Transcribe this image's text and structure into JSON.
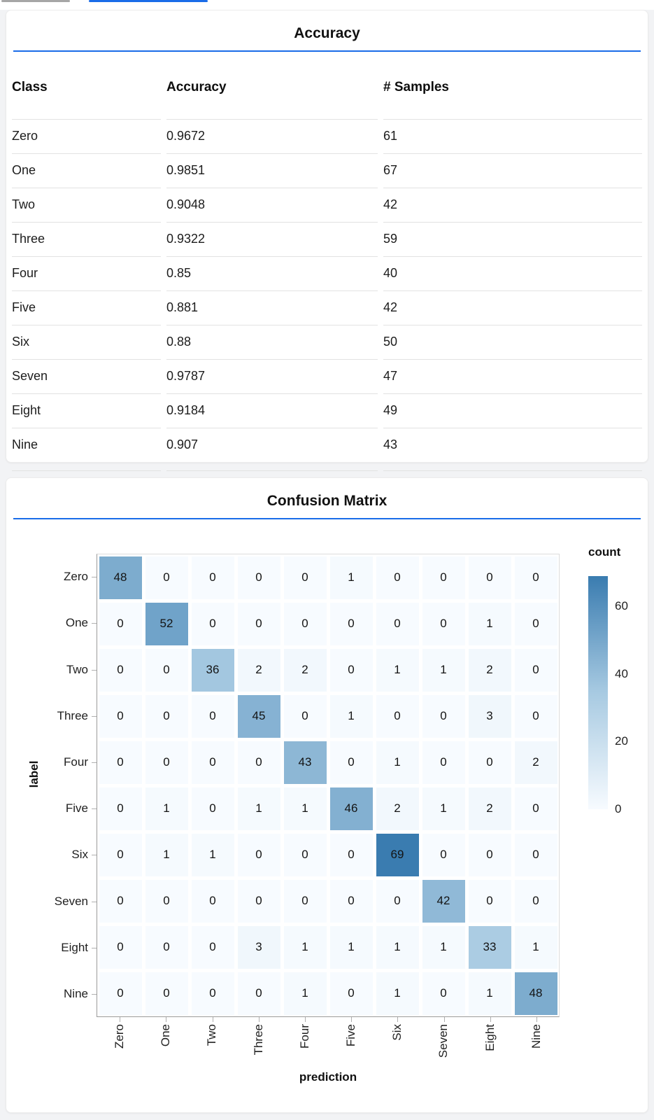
{
  "page": {
    "background": "#f2f3f5",
    "accent_blue": "#1a6ce8"
  },
  "top_tabs": {
    "gray_indicator_color": "#a6a6a6",
    "blue_indicator_color": "#1a6ce8"
  },
  "accuracy_card": {
    "title": "Accuracy",
    "table": {
      "columns": [
        "Class",
        "Accuracy",
        "# Samples"
      ],
      "rows": [
        [
          "Zero",
          "0.9672",
          "61"
        ],
        [
          "One",
          "0.9851",
          "67"
        ],
        [
          "Two",
          "0.9048",
          "42"
        ],
        [
          "Three",
          "0.9322",
          "59"
        ],
        [
          "Four",
          "0.85",
          "40"
        ],
        [
          "Five",
          "0.881",
          "42"
        ],
        [
          "Six",
          "0.88",
          "50"
        ],
        [
          "Seven",
          "0.9787",
          "47"
        ],
        [
          "Eight",
          "0.9184",
          "49"
        ],
        [
          "Nine",
          "0.907",
          "43"
        ]
      ]
    }
  },
  "confusion_card": {
    "title": "Confusion Matrix"
  },
  "chart_data": {
    "type": "heatmap",
    "title": "Confusion Matrix",
    "xlabel": "prediction",
    "ylabel": "label",
    "x_categories": [
      "Zero",
      "One",
      "Two",
      "Three",
      "Four",
      "Five",
      "Six",
      "Seven",
      "Eight",
      "Nine"
    ],
    "y_categories": [
      "Zero",
      "One",
      "Two",
      "Three",
      "Four",
      "Five",
      "Six",
      "Seven",
      "Eight",
      "Nine"
    ],
    "matrix": [
      [
        48,
        0,
        0,
        0,
        0,
        1,
        0,
        0,
        0,
        0
      ],
      [
        0,
        52,
        0,
        0,
        0,
        0,
        0,
        0,
        1,
        0
      ],
      [
        0,
        0,
        36,
        2,
        2,
        0,
        1,
        1,
        2,
        0
      ],
      [
        0,
        0,
        0,
        45,
        0,
        1,
        0,
        0,
        3,
        0
      ],
      [
        0,
        0,
        0,
        0,
        43,
        0,
        1,
        0,
        0,
        2
      ],
      [
        0,
        1,
        0,
        1,
        1,
        46,
        2,
        1,
        2,
        0
      ],
      [
        0,
        1,
        1,
        0,
        0,
        0,
        69,
        0,
        0,
        0
      ],
      [
        0,
        0,
        0,
        0,
        0,
        0,
        0,
        42,
        0,
        0
      ],
      [
        0,
        0,
        0,
        3,
        1,
        1,
        1,
        1,
        33,
        1
      ],
      [
        0,
        0,
        0,
        0,
        1,
        0,
        1,
        0,
        1,
        48
      ]
    ],
    "legend": {
      "title": "count",
      "tick_values": [
        60,
        40,
        20,
        0
      ],
      "domain": [
        0,
        69
      ],
      "position": "right"
    },
    "colorscale": {
      "stops": [
        [
          0,
          "#f7fbff"
        ],
        [
          35,
          "#a6c9e1"
        ],
        [
          69,
          "#3a7cb0"
        ]
      ]
    },
    "grid": false
  }
}
